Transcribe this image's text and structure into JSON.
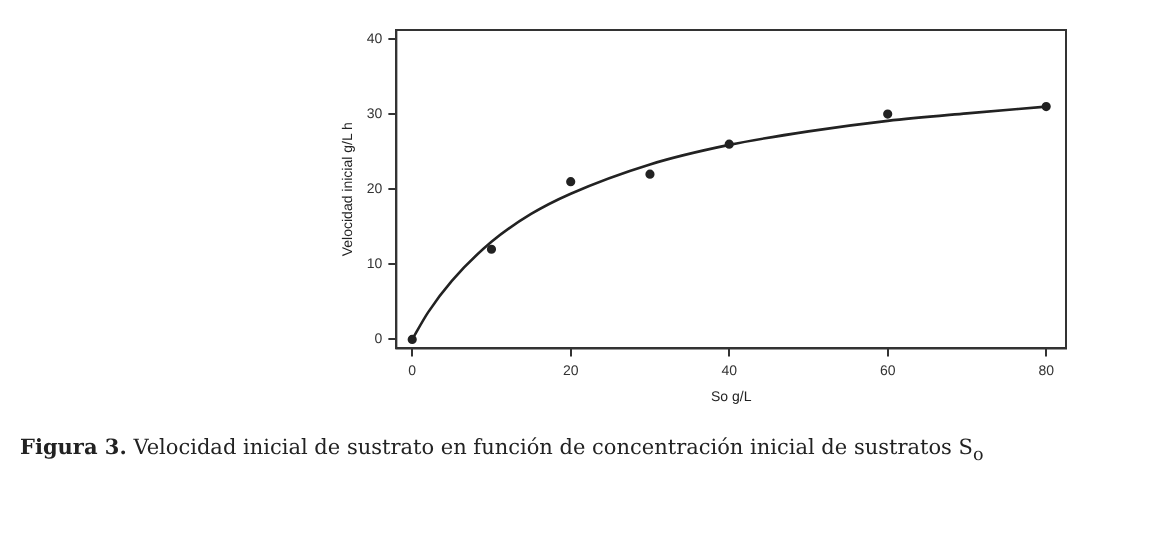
{
  "chart_data": {
    "type": "scatter",
    "xlabel": "So g/L",
    "ylabel": "Velocidad inicial g/L h",
    "xlim": [
      -2,
      82.5
    ],
    "ylim": [
      -1.2,
      41.2
    ],
    "xticks": [
      0,
      20,
      40,
      60,
      80
    ],
    "yticks": [
      0,
      10,
      20,
      30,
      40
    ],
    "grid": false,
    "legend": false,
    "series": [
      {
        "color": "#222222",
        "marker": "circle",
        "x": [
          0,
          10,
          20,
          30,
          40,
          60,
          80
        ],
        "values": [
          0,
          12,
          21,
          22,
          26,
          30,
          31
        ]
      },
      {
        "type": "line",
        "color": "#222222",
        "marker": "none",
        "line_style": "solid",
        "x": [
          0,
          2,
          5,
          10,
          15,
          20,
          30,
          40,
          50,
          60,
          70,
          80
        ],
        "values": [
          0,
          3.6,
          7.8,
          13,
          16.7,
          19.4,
          23.3,
          25.9,
          27.7,
          29.1,
          30.1,
          31
        ]
      }
    ],
    "annotations": [
      "Figura 3. Velocidad inicial de sustrato en función de concentración inicial de sustratos S$_{o}$"
    ]
  }
}
